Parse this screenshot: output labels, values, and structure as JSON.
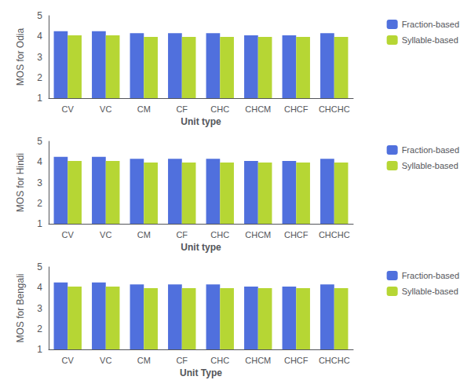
{
  "chart_data": [
    {
      "type": "bar",
      "categories": [
        "CV",
        "VC",
        "CM",
        "CF",
        "CHC",
        "CHCM",
        "CHCF",
        "CHCHC"
      ],
      "series": [
        {
          "name": "Fraction-based",
          "values": [
            4.25,
            4.25,
            4.15,
            4.15,
            4.15,
            4.05,
            4.05,
            4.15
          ]
        },
        {
          "name": "Syllable-based",
          "values": [
            4.05,
            4.05,
            3.97,
            3.97,
            3.97,
            3.97,
            3.97,
            3.97
          ]
        }
      ],
      "xlabel": "Unit type",
      "ylabel": "MOS for Odia",
      "ylim": [
        1,
        5
      ],
      "yticks": [
        1,
        2,
        3,
        4,
        5
      ],
      "grid": false,
      "legend": "right"
    },
    {
      "type": "bar",
      "categories": [
        "CV",
        "VC",
        "CM",
        "CF",
        "CHC",
        "CHCM",
        "CHCF",
        "CHCHC"
      ],
      "series": [
        {
          "name": "Fraction-based",
          "values": [
            4.25,
            4.25,
            4.15,
            4.15,
            4.15,
            4.05,
            4.05,
            4.15
          ]
        },
        {
          "name": "Syllable-based",
          "values": [
            4.05,
            4.05,
            3.97,
            3.97,
            3.97,
            3.97,
            3.97,
            3.97
          ]
        }
      ],
      "xlabel": "Unit type",
      "ylabel": "MOS for Hindi",
      "ylim": [
        1,
        5
      ],
      "yticks": [
        1,
        2,
        3,
        4,
        5
      ],
      "grid": false,
      "legend": "right"
    },
    {
      "type": "bar",
      "categories": [
        "CV",
        "VC",
        "CM",
        "CF",
        "CHC",
        "CHCM",
        "CHCF",
        "CHCHC"
      ],
      "series": [
        {
          "name": "Fraction-based",
          "values": [
            4.25,
            4.25,
            4.15,
            4.15,
            4.15,
            4.05,
            4.05,
            4.15
          ]
        },
        {
          "name": "Syllable-based",
          "values": [
            4.05,
            4.05,
            3.97,
            3.97,
            3.97,
            3.97,
            3.97,
            3.97
          ]
        }
      ],
      "xlabel": "Unit Type",
      "ylabel": "MOS for Bengali",
      "ylim": [
        1,
        5
      ],
      "yticks": [
        1,
        2,
        3,
        4,
        5
      ],
      "grid": false,
      "legend": "right"
    }
  ]
}
